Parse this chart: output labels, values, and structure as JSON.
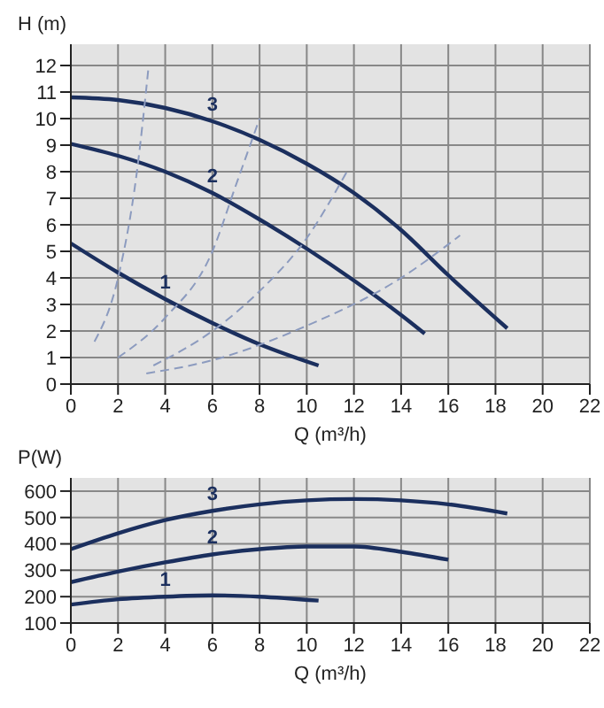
{
  "chart_data": [
    {
      "type": "line",
      "ylabel": "H (m)",
      "xlabel": "Q (m³/h)",
      "xlim": [
        0,
        22
      ],
      "xticks": [
        0,
        2,
        4,
        6,
        8,
        10,
        12,
        14,
        16,
        18,
        20,
        22
      ],
      "ylim": [
        0,
        12.8
      ],
      "yticks": [
        0,
        1,
        2,
        3,
        4,
        5,
        6,
        7,
        8,
        9,
        10,
        11,
        12
      ],
      "grid": true,
      "marker": "none",
      "line_style": "solid",
      "series": [
        {
          "name": "3",
          "color": "#1b2f5e",
          "x": [
            0,
            2,
            4,
            6,
            8,
            10,
            12,
            14,
            16,
            18.5
          ],
          "values": [
            10.8,
            10.7,
            10.4,
            9.9,
            9.2,
            8.3,
            7.2,
            5.8,
            4.1,
            2.1
          ]
        },
        {
          "name": "2",
          "color": "#1b2f5e",
          "x": [
            0,
            2,
            4,
            6,
            8,
            10,
            12,
            14,
            15
          ],
          "values": [
            9.05,
            8.6,
            8.0,
            7.2,
            6.2,
            5.1,
            3.9,
            2.6,
            1.9
          ]
        },
        {
          "name": "1",
          "color": "#1b2f5e",
          "x": [
            0,
            2,
            4,
            6,
            8,
            10.5
          ],
          "values": [
            5.3,
            4.2,
            3.2,
            2.3,
            1.5,
            0.7
          ]
        },
        {
          "color": "#8c9bbf",
          "line_style": "dashed",
          "x": [
            1,
            2,
            2.8,
            3.3
          ],
          "values": [
            1.6,
            4,
            8,
            12
          ]
        },
        {
          "color": "#8c9bbf",
          "line_style": "dashed",
          "x": [
            2,
            4,
            6,
            7,
            8
          ],
          "values": [
            1,
            2.5,
            5,
            7.5,
            10
          ]
        },
        {
          "color": "#8c9bbf",
          "line_style": "dashed",
          "x": [
            3.5,
            6,
            8,
            10,
            11.7
          ],
          "values": [
            0.7,
            2,
            3.5,
            5.5,
            8
          ]
        },
        {
          "color": "#8c9bbf",
          "line_style": "dashed",
          "x": [
            3.2,
            6,
            10,
            14,
            16.5
          ],
          "values": [
            0.4,
            0.9,
            2.2,
            4,
            5.6
          ]
        }
      ]
    },
    {
      "type": "line",
      "ylabel": "P(W)",
      "xlabel": "Q (m³/h)",
      "xlim": [
        0,
        22
      ],
      "xticks": [
        0,
        2,
        4,
        6,
        8,
        10,
        12,
        14,
        16,
        18,
        20,
        22
      ],
      "ylim": [
        100,
        650
      ],
      "yticks": [
        100,
        200,
        300,
        400,
        500,
        600
      ],
      "grid": true,
      "marker": "none",
      "line_style": "solid",
      "series": [
        {
          "name": "3",
          "color": "#1b2f5e",
          "x": [
            0,
            2,
            4,
            6,
            8,
            10,
            12,
            14,
            16,
            18.5
          ],
          "values": [
            380,
            440,
            490,
            525,
            550,
            565,
            570,
            565,
            550,
            515
          ]
        },
        {
          "name": "2",
          "color": "#1b2f5e",
          "x": [
            0,
            2,
            4,
            6,
            8,
            10,
            12,
            14,
            16
          ],
          "values": [
            255,
            295,
            330,
            360,
            380,
            390,
            390,
            370,
            340
          ]
        },
        {
          "name": "1",
          "color": "#1b2f5e",
          "x": [
            0,
            2,
            4,
            6,
            8,
            10.5
          ],
          "values": [
            170,
            190,
            200,
            205,
            200,
            185
          ]
        }
      ]
    }
  ]
}
